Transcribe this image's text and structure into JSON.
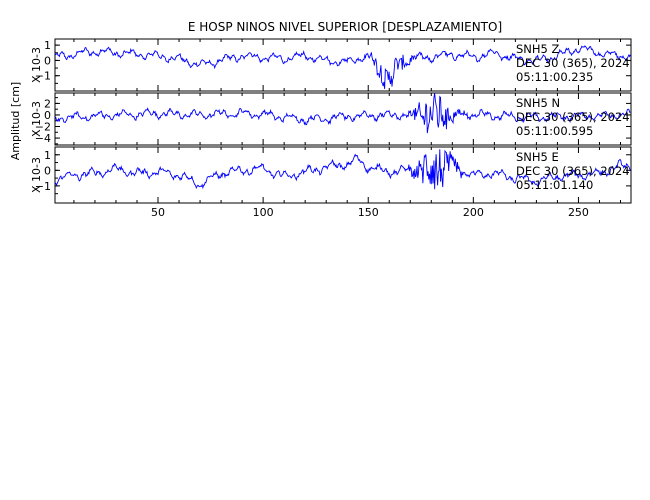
{
  "chart_data": {
    "type": "line",
    "title": "E HOSP NINOS NIVEL SUPERIOR [DESPLAZAMIENTO]",
    "ylabel": "Amplitud [cm]",
    "xlim": [
      1,
      275
    ],
    "x_ticks": [
      50,
      100,
      150,
      200,
      250
    ],
    "line_color": "#0000ff",
    "grid": false,
    "panels": [
      {
        "channel": "SNH5 Z",
        "date": "DEC 30 (365), 2024",
        "time": "05:11:00.235",
        "scale_label": "X 10-3",
        "ylim": [
          -2,
          1.4
        ],
        "y_ticks": [
          1,
          0,
          -1
        ],
        "burst_center": 160,
        "burst_amp": 0.8,
        "x": [
          1,
          10,
          20,
          30,
          40,
          50,
          60,
          70,
          80,
          90,
          100,
          110,
          120,
          130,
          140,
          150,
          160,
          165,
          170,
          180,
          190,
          200,
          210,
          220,
          230,
          240,
          250,
          260,
          270,
          275
        ],
        "y": [
          0.2,
          0.4,
          0.6,
          0.5,
          0.4,
          0.3,
          0.1,
          -0.3,
          0.0,
          0.3,
          0.2,
          0.1,
          0.3,
          0.0,
          -0.1,
          0.3,
          -1.3,
          -0.2,
          0.1,
          0.2,
          0.4,
          0.2,
          0.5,
          0.1,
          0.0,
          0.3,
          0.8,
          0.5,
          0.3,
          0.2
        ]
      },
      {
        "channel": "SNH5 N",
        "date": "DEC 30 (365), 2024",
        "time": "05:11:00.595",
        "scale_label": "X 10-3",
        "ylim": [
          -5.2,
          3.8
        ],
        "y_ticks": [
          2,
          0,
          -2,
          -4
        ],
        "burst_center": 181,
        "burst_amp": 3.6,
        "x": [
          1,
          10,
          20,
          30,
          40,
          50,
          60,
          70,
          80,
          90,
          100,
          110,
          120,
          130,
          140,
          150,
          160,
          170,
          175,
          180,
          185,
          190,
          200,
          210,
          220,
          230,
          240,
          250,
          260,
          270,
          275
        ],
        "y": [
          -0.6,
          -0.4,
          -0.2,
          0.0,
          0.1,
          0.3,
          0.1,
          0.0,
          0.2,
          0.3,
          0.1,
          -0.4,
          -0.8,
          -0.6,
          -0.3,
          -0.1,
          0.0,
          -0.1,
          0.0,
          0.2,
          0.1,
          0.0,
          0.1,
          -0.1,
          -0.3,
          -0.4,
          -0.3,
          -0.2,
          -0.1,
          0.0,
          0.0
        ]
      },
      {
        "channel": "SNH5 E",
        "date": "DEC 30 (365), 2024",
        "time": "05:11:01.140",
        "scale_label": "X 10-3",
        "ylim": [
          -2.1,
          1.5
        ],
        "y_ticks": [
          1,
          0,
          -1
        ],
        "burst_center": 182,
        "burst_amp": 1.6,
        "x": [
          1,
          10,
          20,
          30,
          40,
          50,
          60,
          70,
          80,
          90,
          100,
          110,
          120,
          130,
          140,
          145,
          150,
          160,
          170,
          180,
          190,
          200,
          210,
          220,
          230,
          240,
          250,
          260,
          270,
          275
        ],
        "y": [
          -0.6,
          -0.3,
          -0.2,
          0.1,
          -0.2,
          -0.1,
          -0.3,
          -0.9,
          -0.2,
          0.0,
          0.1,
          -0.4,
          -0.1,
          0.2,
          0.4,
          0.7,
          0.2,
          -0.1,
          0.0,
          0.1,
          0.2,
          -0.3,
          -0.2,
          -0.5,
          -0.7,
          -0.4,
          -0.3,
          -0.2,
          0.3,
          0.2
        ]
      }
    ]
  }
}
